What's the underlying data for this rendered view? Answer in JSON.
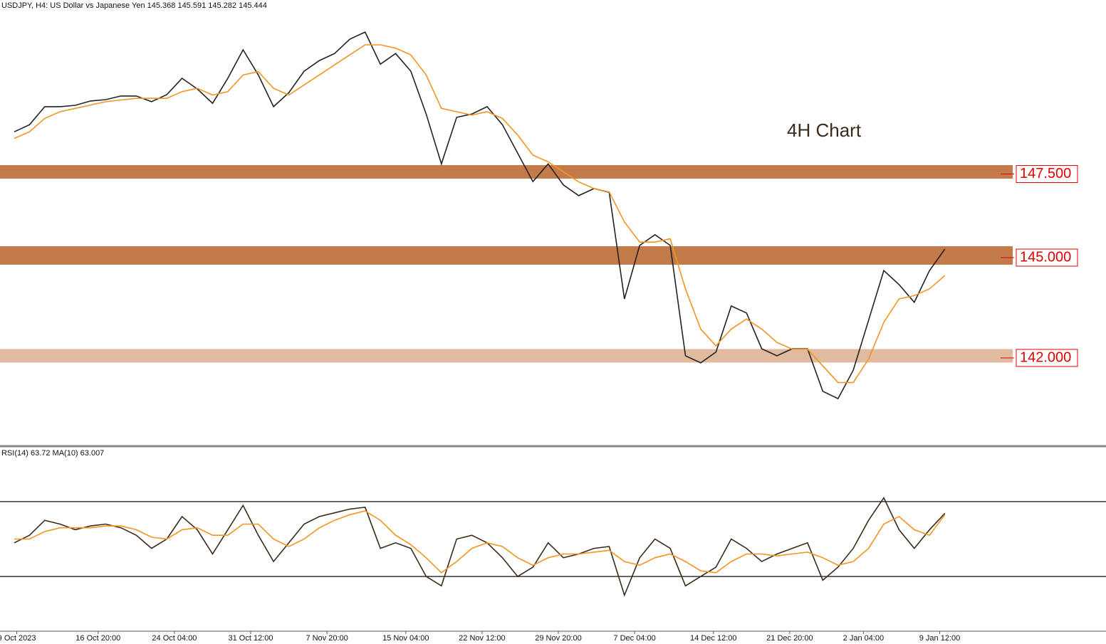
{
  "chart_data": [
    {
      "type": "line",
      "title": "USDJPY, H4:  US Dollar vs Japanese Yen  145.368 145.591 145.282 145.444",
      "annotation": "4H Chart",
      "xlim": [
        -5.6,
        429.4
      ],
      "ylim": [
        139.34,
        152.64
      ],
      "x": [
        0,
        6,
        12,
        18,
        24,
        30,
        36,
        42,
        48,
        54,
        60,
        66,
        72,
        78,
        84,
        90,
        96,
        102,
        108,
        114,
        120,
        126,
        132,
        138,
        144,
        150,
        156,
        162,
        168,
        174,
        180,
        186,
        192,
        198,
        204,
        210,
        216,
        222,
        228,
        234,
        240,
        246,
        252,
        258,
        264,
        270,
        276,
        282,
        288,
        294,
        300,
        306,
        312,
        318,
        324,
        330,
        336,
        342,
        348,
        354,
        360,
        366
      ],
      "series": [
        {
          "name": "USDJPY",
          "color": "#222222",
          "values": [
            148.7,
            148.91,
            149.45,
            149.45,
            149.49,
            149.62,
            149.66,
            149.77,
            149.77,
            149.6,
            149.81,
            150.3,
            149.98,
            149.55,
            150.3,
            151.15,
            150.4,
            149.45,
            149.87,
            150.51,
            150.83,
            151.04,
            151.47,
            151.68,
            150.72,
            151.04,
            150.51,
            149.23,
            147.74,
            149.13,
            149.23,
            149.45,
            148.91,
            148.06,
            147.21,
            147.74,
            147.11,
            146.79,
            147.0,
            146.89,
            143.7,
            145.3,
            145.62,
            145.3,
            142.0,
            141.79,
            142.11,
            143.49,
            143.28,
            142.21,
            142.0,
            142.21,
            142.21,
            140.94,
            140.72,
            141.57,
            143.06,
            144.55,
            144.13,
            143.6,
            144.55,
            145.19
          ]
        },
        {
          "name": "MA",
          "color": "#f39422",
          "values": [
            148.5,
            148.7,
            149.1,
            149.3,
            149.4,
            149.5,
            149.6,
            149.65,
            149.7,
            149.7,
            149.7,
            149.9,
            150.0,
            149.8,
            149.9,
            150.4,
            150.5,
            150.0,
            149.8,
            150.1,
            150.4,
            150.7,
            151.0,
            151.3,
            151.3,
            151.2,
            151.0,
            150.4,
            149.4,
            149.3,
            149.2,
            149.3,
            149.1,
            148.6,
            148.0,
            147.8,
            147.5,
            147.2,
            147.0,
            146.9,
            146.0,
            145.4,
            145.4,
            145.5,
            144.0,
            142.8,
            142.3,
            142.8,
            143.1,
            142.8,
            142.4,
            142.2,
            142.2,
            141.7,
            141.2,
            141.2,
            141.9,
            143.0,
            143.7,
            143.8,
            144.0,
            144.4
          ]
        }
      ],
      "levels": [
        {
          "value": 147.5,
          "label": "147.500",
          "color": "#c47b4a"
        },
        {
          "value": 145,
          "label": "145.000",
          "color": "#c47b4a"
        },
        {
          "value": 142,
          "label": "142.000",
          "color": "#e0bba0"
        }
      ]
    },
    {
      "type": "line",
      "title": "RSI(14) 63.72 MA(10) 63.007",
      "xlim": [
        -5.6,
        429.4
      ],
      "ylim": [
        0,
        100
      ],
      "levels": [
        70,
        30
      ],
      "xticks": [
        {
          "value": 1,
          "label": "9 Oct 2023"
        },
        {
          "value": 33,
          "label": "16 Oct 20:00"
        },
        {
          "value": 63,
          "label": "24 Oct 04:00"
        },
        {
          "value": 93,
          "label": "31 Oct 12:00"
        },
        {
          "value": 123,
          "label": "7 Nov 20:00"
        },
        {
          "value": 154,
          "label": "15 Nov 04:00"
        },
        {
          "value": 184,
          "label": "22 Nov 12:00"
        },
        {
          "value": 214,
          "label": "29 Nov 20:00"
        },
        {
          "value": 244,
          "label": "7 Dec 04:00"
        },
        {
          "value": 275,
          "label": "14 Dec 12:00"
        },
        {
          "value": 305,
          "label": "21 Dec 20:00"
        },
        {
          "value": 334,
          "label": "2 Jan 04:00"
        },
        {
          "value": 364,
          "label": "9 Jan 12:00"
        }
      ],
      "x": [
        0,
        6,
        12,
        18,
        24,
        30,
        36,
        42,
        48,
        54,
        60,
        66,
        72,
        78,
        84,
        90,
        96,
        102,
        108,
        114,
        120,
        126,
        132,
        138,
        144,
        150,
        156,
        162,
        168,
        174,
        180,
        186,
        192,
        198,
        204,
        210,
        216,
        222,
        228,
        234,
        240,
        246,
        252,
        258,
        264,
        270,
        276,
        282,
        288,
        294,
        300,
        306,
        312,
        318,
        324,
        330,
        336,
        342,
        348,
        354,
        360,
        366
      ],
      "series": [
        {
          "name": "RSI(14)",
          "color": "#3b2a1a",
          "values": [
            48,
            52,
            60,
            58,
            55,
            57,
            58,
            56,
            52,
            45,
            50,
            62,
            55,
            42,
            55,
            68,
            52,
            38,
            48,
            58,
            62,
            64,
            66,
            67,
            45,
            48,
            45,
            30,
            25,
            50,
            52,
            48,
            40,
            30,
            35,
            48,
            40,
            42,
            45,
            46,
            20,
            40,
            50,
            45,
            25,
            30,
            35,
            50,
            45,
            38,
            42,
            45,
            48,
            28,
            35,
            45,
            60,
            72,
            55,
            45,
            55,
            63.72
          ]
        },
        {
          "name": "MA(10)",
          "color": "#f39422",
          "values": [
            50,
            50,
            54,
            56,
            56,
            56,
            57,
            57,
            55,
            51,
            50,
            55,
            56,
            52,
            52,
            58,
            58,
            50,
            46,
            50,
            56,
            60,
            63,
            65,
            60,
            52,
            47,
            40,
            32,
            38,
            45,
            48,
            46,
            40,
            36,
            40,
            42,
            42,
            43,
            44,
            38,
            36,
            40,
            42,
            38,
            33,
            32,
            38,
            42,
            42,
            41,
            42,
            43,
            40,
            36,
            38,
            45,
            58,
            62,
            55,
            52,
            63.007
          ]
        }
      ]
    }
  ]
}
